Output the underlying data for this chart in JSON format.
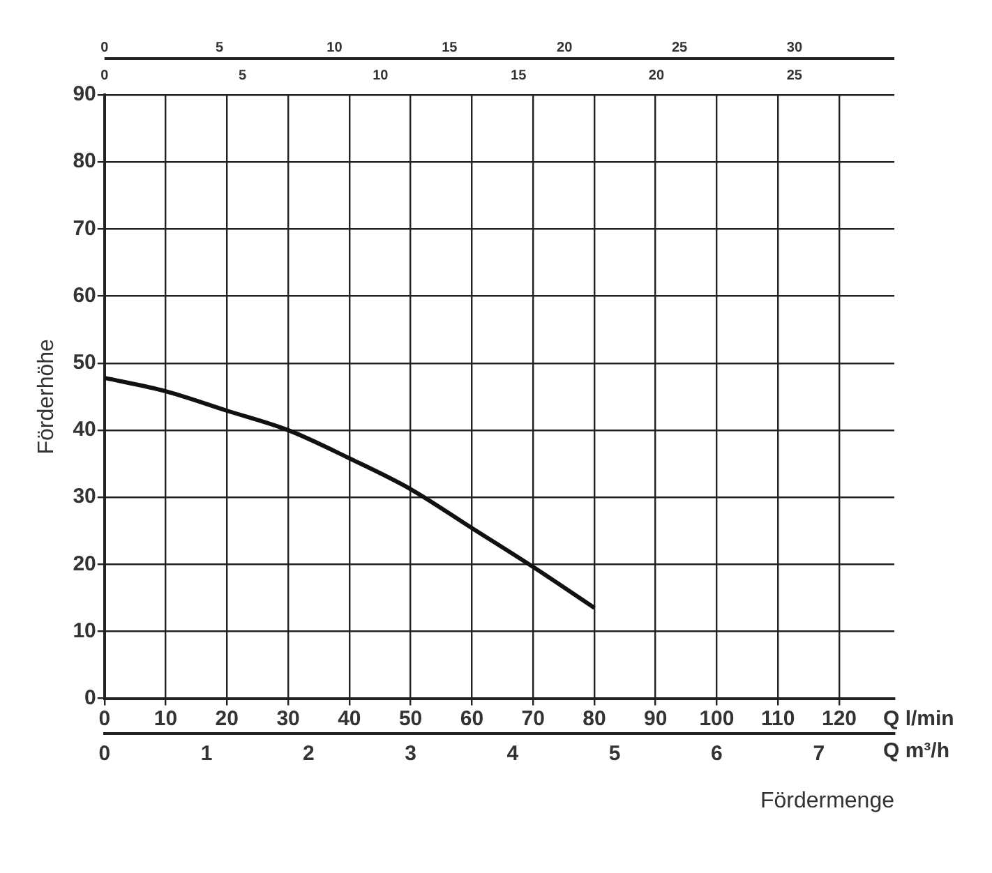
{
  "chart_data": {
    "type": "line",
    "xlabel": "Fördermenge",
    "x2label": "Q m³/h",
    "ylabel": "Förderhöhe",
    "x": [
      0,
      10,
      20,
      30,
      40,
      50,
      60,
      70,
      80
    ],
    "series": [
      {
        "color": "#111111",
        "values": [
          47.8,
          45.8,
          42.9,
          40,
          35.8,
          31.2,
          25.4,
          19.6,
          13.5
        ]
      }
    ],
    "xlim": [
      0,
      129
    ],
    "xticks": [
      0,
      10,
      20,
      30,
      40,
      50,
      60,
      70,
      80,
      90,
      100,
      110,
      120
    ],
    "x2lim": [
      0,
      7.74
    ],
    "x2ticks": [
      0,
      1,
      2,
      3,
      4,
      5,
      6,
      7
    ],
    "ylim": [
      0,
      90
    ],
    "yticks": [
      0,
      10,
      20,
      30,
      40,
      50,
      60,
      70,
      80,
      90
    ],
    "annotations": [
      "Q l/min",
      "0",
      "5",
      "10",
      "15",
      "20",
      "25",
      "30",
      "0",
      "5",
      "10",
      "15",
      "20",
      "25"
    ],
    "grid": true,
    "marker": "none",
    "line_style": "solid",
    "legend": false
  }
}
